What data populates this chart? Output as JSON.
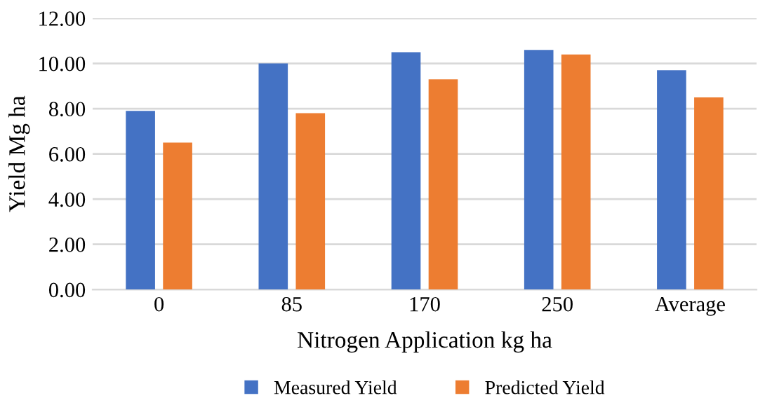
{
  "chart_data": {
    "type": "bar",
    "xlabel": "Nitrogen Application kg ha",
    "ylabel": "Yield Mg ha",
    "categories": [
      "0",
      "85",
      "170",
      "250",
      "Average"
    ],
    "series": [
      {
        "name": "Measured Yield",
        "color": "#4472c4",
        "values": [
          7.9,
          10.0,
          10.5,
          10.6,
          9.7
        ]
      },
      {
        "name": "Predicted Yield",
        "color": "#ed7d31",
        "values": [
          6.5,
          7.8,
          9.3,
          10.4,
          8.5
        ]
      }
    ],
    "ylim": [
      0,
      12
    ],
    "yticks": [
      {
        "value": 0,
        "label": "0.00"
      },
      {
        "value": 2,
        "label": "2.00"
      },
      {
        "value": 4,
        "label": "4.00"
      },
      {
        "value": 6,
        "label": "6.00"
      },
      {
        "value": 8,
        "label": "8.00"
      },
      {
        "value": 10,
        "label": "10.00"
      },
      {
        "value": 12,
        "label": "12.00"
      }
    ],
    "grid": "y",
    "legend": "bottom"
  }
}
